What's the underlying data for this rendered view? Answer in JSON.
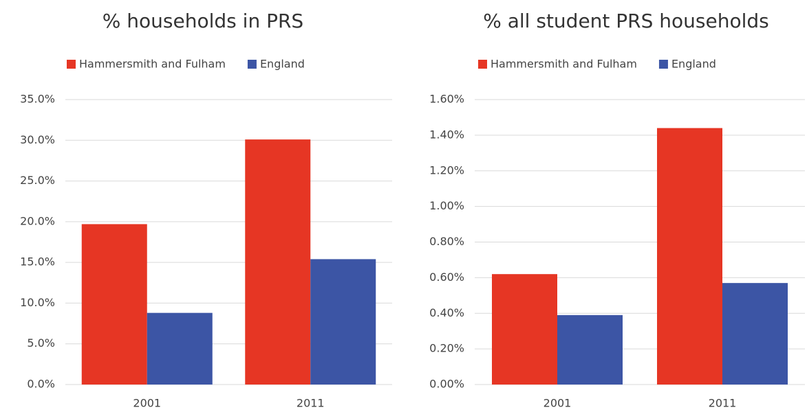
{
  "chart_data": [
    {
      "type": "bar",
      "title": "% households in PRS",
      "categories": [
        "2001",
        "2011"
      ],
      "series": [
        {
          "name": "Hammersmith and Fulham",
          "color": "#e63624",
          "values": [
            19.7,
            30.1
          ]
        },
        {
          "name": "England",
          "color": "#3c55a5",
          "values": [
            8.8,
            15.4
          ]
        }
      ],
      "ylim": [
        0,
        35
      ],
      "yticks": [
        {
          "value": 0,
          "label": "0.0%"
        },
        {
          "value": 5,
          "label": "5.0%"
        },
        {
          "value": 10,
          "label": "10.0%"
        },
        {
          "value": 15,
          "label": "15.0%"
        },
        {
          "value": 20,
          "label": "20.0%"
        },
        {
          "value": 25,
          "label": "25.0%"
        },
        {
          "value": 30,
          "label": "30.0%"
        },
        {
          "value": 35,
          "label": "35.0%"
        }
      ],
      "grid": true,
      "legend": "top"
    },
    {
      "type": "bar",
      "title": "% all student PRS households",
      "categories": [
        "2001",
        "2011"
      ],
      "series": [
        {
          "name": "Hammersmith and Fulham",
          "color": "#e63624",
          "values": [
            0.62,
            1.44
          ]
        },
        {
          "name": "England",
          "color": "#3c55a5",
          "values": [
            0.39,
            0.57
          ]
        }
      ],
      "ylim": [
        0,
        1.6
      ],
      "yticks": [
        {
          "value": 0,
          "label": "0.00%"
        },
        {
          "value": 0.2,
          "label": "0.20%"
        },
        {
          "value": 0.4,
          "label": "0.40%"
        },
        {
          "value": 0.6,
          "label": "0.60%"
        },
        {
          "value": 0.8,
          "label": "0.80%"
        },
        {
          "value": 1.0,
          "label": "1.00%"
        },
        {
          "value": 1.2,
          "label": "1.20%"
        },
        {
          "value": 1.4,
          "label": "1.40%"
        },
        {
          "value": 1.6,
          "label": "1.60%"
        }
      ],
      "grid": true,
      "legend": "top"
    }
  ]
}
